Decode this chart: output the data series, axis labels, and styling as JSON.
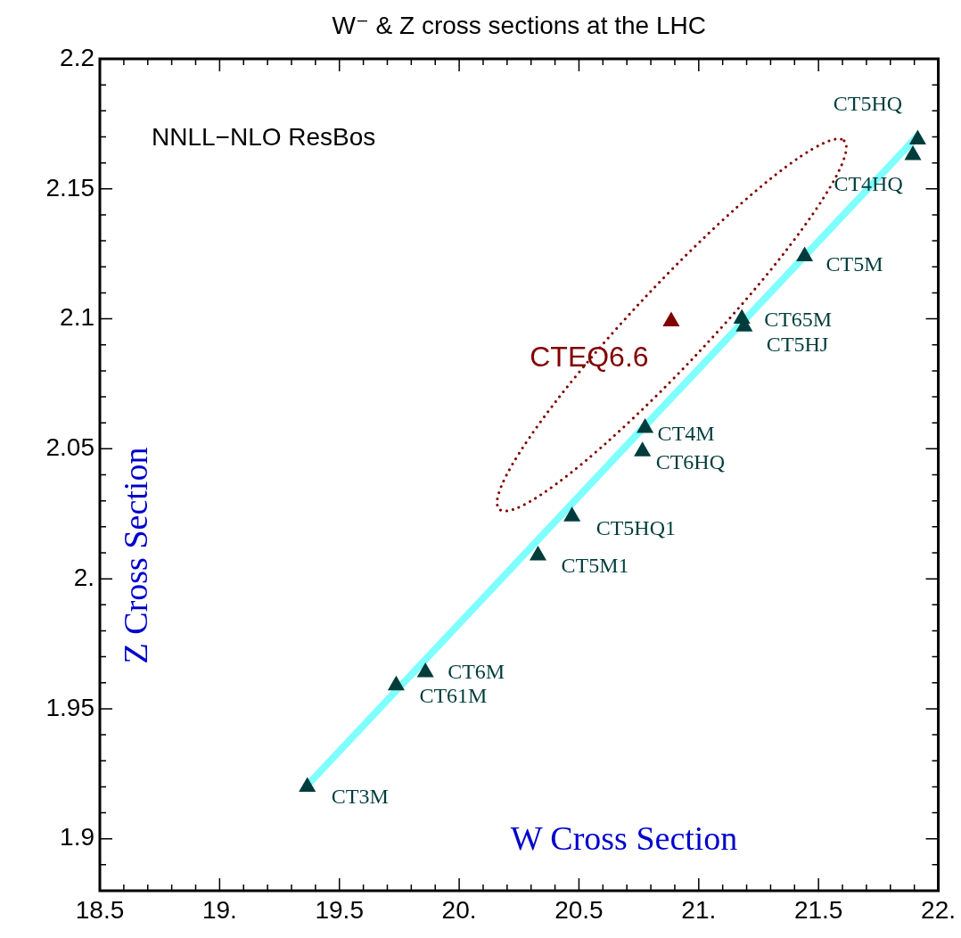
{
  "chart_data": {
    "type": "scatter",
    "title": "W⁻ & Z cross sections at the LHC",
    "xlabel": "W Cross Section",
    "ylabel": "Z Cross Section",
    "annotations": [
      "NNLL−NLO ResBos"
    ],
    "xlim": [
      18.5,
      22.0
    ],
    "ylim": [
      1.88,
      2.2
    ],
    "xticks": [
      {
        "value": 18.5,
        "label": "18.5"
      },
      {
        "value": 18.6,
        "label": null
      },
      {
        "value": 18.7,
        "label": null
      },
      {
        "value": 18.8,
        "label": null
      },
      {
        "value": 18.9,
        "label": null
      },
      {
        "value": 19,
        "label": "19."
      },
      {
        "value": 19.1,
        "label": null
      },
      {
        "value": 19.2,
        "label": null
      },
      {
        "value": 19.3,
        "label": null
      },
      {
        "value": 19.4,
        "label": null
      },
      {
        "value": 19.5,
        "label": "19.5"
      },
      {
        "value": 19.6,
        "label": null
      },
      {
        "value": 19.7,
        "label": null
      },
      {
        "value": 19.8,
        "label": null
      },
      {
        "value": 19.9,
        "label": null
      },
      {
        "value": 20,
        "label": "20."
      },
      {
        "value": 20.1,
        "label": null
      },
      {
        "value": 20.2,
        "label": null
      },
      {
        "value": 20.3,
        "label": null
      },
      {
        "value": 20.4,
        "label": null
      },
      {
        "value": 20.5,
        "label": "20.5"
      },
      {
        "value": 20.6,
        "label": null
      },
      {
        "value": 20.7,
        "label": null
      },
      {
        "value": 20.8,
        "label": null
      },
      {
        "value": 20.9,
        "label": null
      },
      {
        "value": 21,
        "label": "21."
      },
      {
        "value": 21.1,
        "label": null
      },
      {
        "value": 21.2,
        "label": null
      },
      {
        "value": 21.3,
        "label": null
      },
      {
        "value": 21.4,
        "label": null
      },
      {
        "value": 21.5,
        "label": "21.5"
      },
      {
        "value": 21.6,
        "label": null
      },
      {
        "value": 21.7,
        "label": null
      },
      {
        "value": 21.8,
        "label": null
      },
      {
        "value": 21.9,
        "label": null
      },
      {
        "value": 22,
        "label": "22."
      }
    ],
    "yticks": [
      {
        "value": 1.88,
        "label": null
      },
      {
        "value": 1.89,
        "label": null
      },
      {
        "value": 1.9,
        "label": "1.9"
      },
      {
        "value": 1.91,
        "label": null
      },
      {
        "value": 1.92,
        "label": null
      },
      {
        "value": 1.93,
        "label": null
      },
      {
        "value": 1.94,
        "label": null
      },
      {
        "value": 1.95,
        "label": "1.95"
      },
      {
        "value": 1.96,
        "label": null
      },
      {
        "value": 1.97,
        "label": null
      },
      {
        "value": 1.98,
        "label": null
      },
      {
        "value": 1.99,
        "label": null
      },
      {
        "value": 2.0,
        "label": "2."
      },
      {
        "value": 2.01,
        "label": null
      },
      {
        "value": 2.02,
        "label": null
      },
      {
        "value": 2.03,
        "label": null
      },
      {
        "value": 2.04,
        "label": null
      },
      {
        "value": 2.05,
        "label": "2.05"
      },
      {
        "value": 2.06,
        "label": null
      },
      {
        "value": 2.07,
        "label": null
      },
      {
        "value": 2.08,
        "label": null
      },
      {
        "value": 2.09,
        "label": null
      },
      {
        "value": 2.1,
        "label": "2.1"
      },
      {
        "value": 2.11,
        "label": null
      },
      {
        "value": 2.12,
        "label": null
      },
      {
        "value": 2.13,
        "label": null
      },
      {
        "value": 2.14,
        "label": null
      },
      {
        "value": 2.15,
        "label": "2.15"
      },
      {
        "value": 2.16,
        "label": null
      },
      {
        "value": 2.17,
        "label": null
      },
      {
        "value": 2.18,
        "label": null
      },
      {
        "value": 2.19,
        "label": null
      },
      {
        "value": 2.2,
        "label": "2.2"
      }
    ],
    "grid": false,
    "legend": false,
    "marker": "triangle",
    "series": [
      {
        "color": "#003c3c",
        "x": [
          21.914,
          21.894,
          21.442,
          21.18,
          21.19,
          20.776,
          20.765,
          20.471,
          20.329,
          19.859,
          19.737,
          19.366
        ],
        "values": [
          2.169,
          2.163,
          2.124,
          2.1,
          2.097,
          2.058,
          2.049,
          2.024,
          2.009,
          1.964,
          1.959,
          1.92
        ],
        "value_labels": [
          "CT5HQ",
          "CT4HQ",
          "CT5M",
          "CT65M",
          "CT5HJ",
          "CT4M",
          "CT6HQ",
          "CT5HQ1",
          "CT5M1",
          "CT6M",
          "CT61M",
          "CT3M"
        ]
      },
      {
        "color": "#800000",
        "x": [
          20.885
        ],
        "values": [
          2.099
        ],
        "value_labels": [
          "CTEQ6.6"
        ]
      },
      {
        "type": "line",
        "color": "#80ffff",
        "marker": "none",
        "x": [
          19.36,
          21.91
        ],
        "values": [
          1.92,
          2.17
        ]
      }
    ]
  }
}
